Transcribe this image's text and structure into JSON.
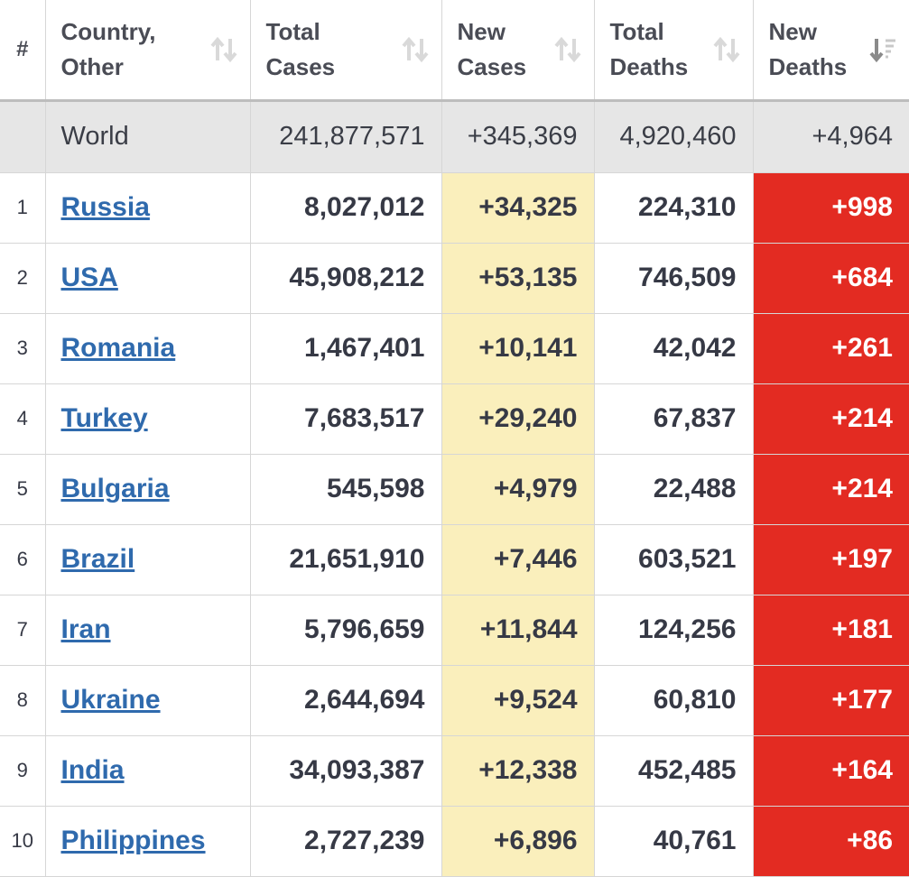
{
  "columns": [
    {
      "label_line1": "#",
      "label_line2": ""
    },
    {
      "label_line1": "Country,",
      "label_line2": "Other"
    },
    {
      "label_line1": "Total",
      "label_line2": "Cases"
    },
    {
      "label_line1": "New",
      "label_line2": "Cases"
    },
    {
      "label_line1": "Total",
      "label_line2": "Deaths"
    },
    {
      "label_line1": "New",
      "label_line2": "Deaths"
    }
  ],
  "world": {
    "country": "World",
    "total_cases": "241,877,571",
    "new_cases": "+345,369",
    "total_deaths": "4,920,460",
    "new_deaths": "+4,964"
  },
  "rows": [
    {
      "idx": "1",
      "country": "Russia",
      "total_cases": "8,027,012",
      "new_cases": "+34,325",
      "total_deaths": "224,310",
      "new_deaths": "+998"
    },
    {
      "idx": "2",
      "country": "USA",
      "total_cases": "45,908,212",
      "new_cases": "+53,135",
      "total_deaths": "746,509",
      "new_deaths": "+684"
    },
    {
      "idx": "3",
      "country": "Romania",
      "total_cases": "1,467,401",
      "new_cases": "+10,141",
      "total_deaths": "42,042",
      "new_deaths": "+261"
    },
    {
      "idx": "4",
      "country": "Turkey",
      "total_cases": "7,683,517",
      "new_cases": "+29,240",
      "total_deaths": "67,837",
      "new_deaths": "+214"
    },
    {
      "idx": "5",
      "country": "Bulgaria",
      "total_cases": "545,598",
      "new_cases": "+4,979",
      "total_deaths": "22,488",
      "new_deaths": "+214"
    },
    {
      "idx": "6",
      "country": "Brazil",
      "total_cases": "21,651,910",
      "new_cases": "+7,446",
      "total_deaths": "603,521",
      "new_deaths": "+197"
    },
    {
      "idx": "7",
      "country": "Iran",
      "total_cases": "5,796,659",
      "new_cases": "+11,844",
      "total_deaths": "124,256",
      "new_deaths": "+181"
    },
    {
      "idx": "8",
      "country": "Ukraine",
      "total_cases": "2,644,694",
      "new_cases": "+9,524",
      "total_deaths": "60,810",
      "new_deaths": "+177"
    },
    {
      "idx": "9",
      "country": "India",
      "total_cases": "34,093,387",
      "new_cases": "+12,338",
      "total_deaths": "452,485",
      "new_deaths": "+164"
    },
    {
      "idx": "10",
      "country": "Philippines",
      "total_cases": "2,727,239",
      "new_cases": "+6,896",
      "total_deaths": "40,761",
      "new_deaths": "+86"
    }
  ],
  "colors": {
    "header_divider": "#bdbdbd",
    "world_bg": "#e6e6e6",
    "new_cases_bg": "#faefbc",
    "new_deaths_bg": "#e32b22",
    "link": "#2f6aad"
  },
  "icons": {
    "sort_default": "sort-arrows-icon",
    "sort_active": "sort-desc-icon"
  }
}
